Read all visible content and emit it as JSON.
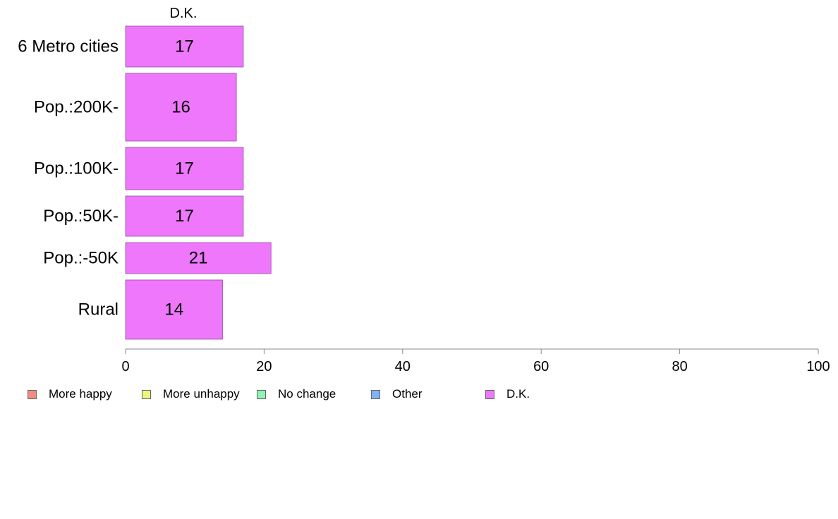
{
  "chart_data": {
    "type": "bar",
    "orientation": "horizontal",
    "stacked": true,
    "series_header": "D.K.",
    "categories": [
      "6 Metro cities",
      "Pop.:200K-",
      "Pop.:100K-",
      "Pop.:50K-",
      "Pop.:-50K",
      "Rural"
    ],
    "series": [
      {
        "name": "More happy",
        "color": "#f28b82",
        "values": [
          0,
          0,
          0,
          0,
          0,
          0
        ]
      },
      {
        "name": "More unhappy",
        "color": "#eef57e",
        "values": [
          0,
          0,
          0,
          0,
          0,
          0
        ]
      },
      {
        "name": "No change",
        "color": "#8ef5b5",
        "values": [
          0,
          0,
          0,
          0,
          0,
          0
        ]
      },
      {
        "name": "Other",
        "color": "#80b3f5",
        "values": [
          0,
          0,
          0,
          0,
          0,
          0
        ]
      },
      {
        "name": "D.K.",
        "color": "#ee77fc",
        "values": [
          17,
          16,
          17,
          17,
          21,
          14
        ]
      }
    ],
    "data_labels": [
      "17",
      "16",
      "17",
      "17",
      "21",
      "14"
    ],
    "xlim": [
      0,
      100
    ],
    "x_ticks": [
      0,
      20,
      40,
      60,
      80,
      100
    ],
    "grid": false,
    "legend_position": "bottom"
  }
}
